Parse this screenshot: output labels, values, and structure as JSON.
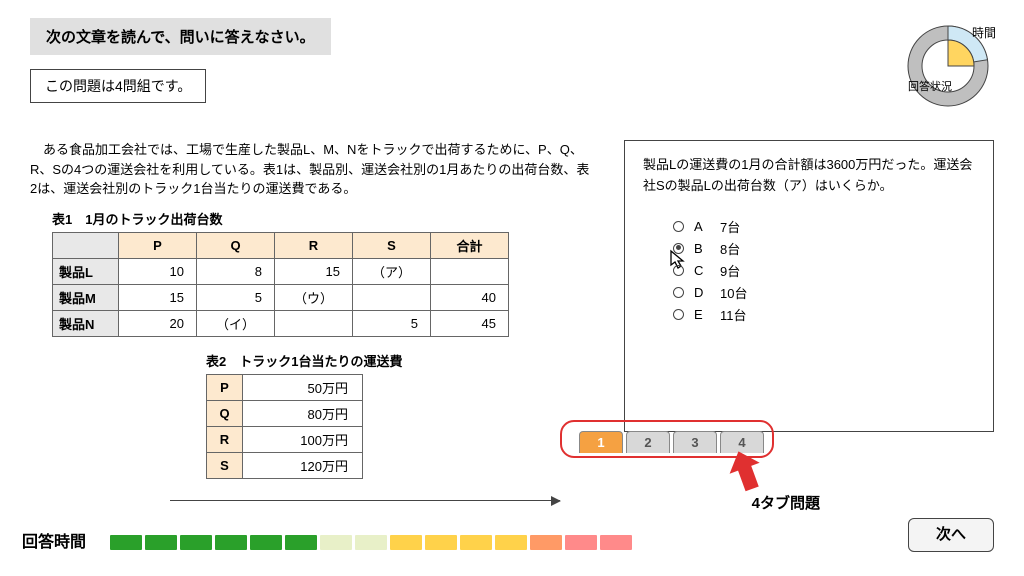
{
  "instruction": "次の文章を読んで、問いに答えなさい。",
  "subinfo": "この問題は4問組です。",
  "body": "　ある食品加工会社では、工場で生産した製品L、M、Nをトラックで出荷するために、P、Q、R、Sの4つの運送会社を利用している。表1は、製品別、運送会社別の1月あたりの出荷台数、表2は、運送会社別のトラック1台当たりの運送費である。",
  "table1": {
    "title": "表1　1月のトラック出荷台数",
    "cols": [
      "P",
      "Q",
      "R",
      "S",
      "合計"
    ],
    "rows": [
      {
        "head": "製品L",
        "cells": [
          "10",
          "8",
          "15",
          "（ア）",
          ""
        ]
      },
      {
        "head": "製品M",
        "cells": [
          "15",
          "5",
          "（ウ）",
          "",
          "40"
        ]
      },
      {
        "head": "製品N",
        "cells": [
          "20",
          "（イ）",
          "",
          "5",
          "45"
        ]
      }
    ]
  },
  "table2": {
    "title": "表2　トラック1台当たりの運送費",
    "rows": [
      {
        "h": "P",
        "v": "50万円"
      },
      {
        "h": "Q",
        "v": "80万円"
      },
      {
        "h": "R",
        "v": "100万円"
      },
      {
        "h": "S",
        "v": "120万円"
      }
    ]
  },
  "question": "製品Lの運送費の1月の合計額は3600万円だった。運送会社Sの製品Lの出荷台数（ア）はいくらか。",
  "options": [
    {
      "letter": "A",
      "text": "7台",
      "selected": false
    },
    {
      "letter": "B",
      "text": "8台",
      "selected": true
    },
    {
      "letter": "C",
      "text": "9台",
      "selected": false
    },
    {
      "letter": "D",
      "text": "10台",
      "selected": false
    },
    {
      "letter": "E",
      "text": "11台",
      "selected": false
    }
  ],
  "tabs": [
    "1",
    "2",
    "3",
    "4"
  ],
  "active_tab": 0,
  "tab_annotation": "4タブ問題",
  "next_button": "次へ",
  "pie": {
    "label_time": "時間",
    "label_status": "回答状況",
    "outer_color": "#bfbfbf",
    "time_slice_color": "#cfe8f5",
    "inner_slice_color": "#ffd560",
    "inner_bg": "#ffffff"
  },
  "timer": {
    "label": "回答時間",
    "colors": [
      "#2aa02a",
      "#2aa02a",
      "#2aa02a",
      "#2aa02a",
      "#2aa02a",
      "#2aa02a",
      "#e8f0c8",
      "#e8f0c8",
      "#ffd24a",
      "#ffd24a",
      "#ffd24a",
      "#ffd24a",
      "#ff9a66",
      "#ff8a8a",
      "#ff8a8a"
    ]
  },
  "annotation_arrow_color": "#e03030"
}
